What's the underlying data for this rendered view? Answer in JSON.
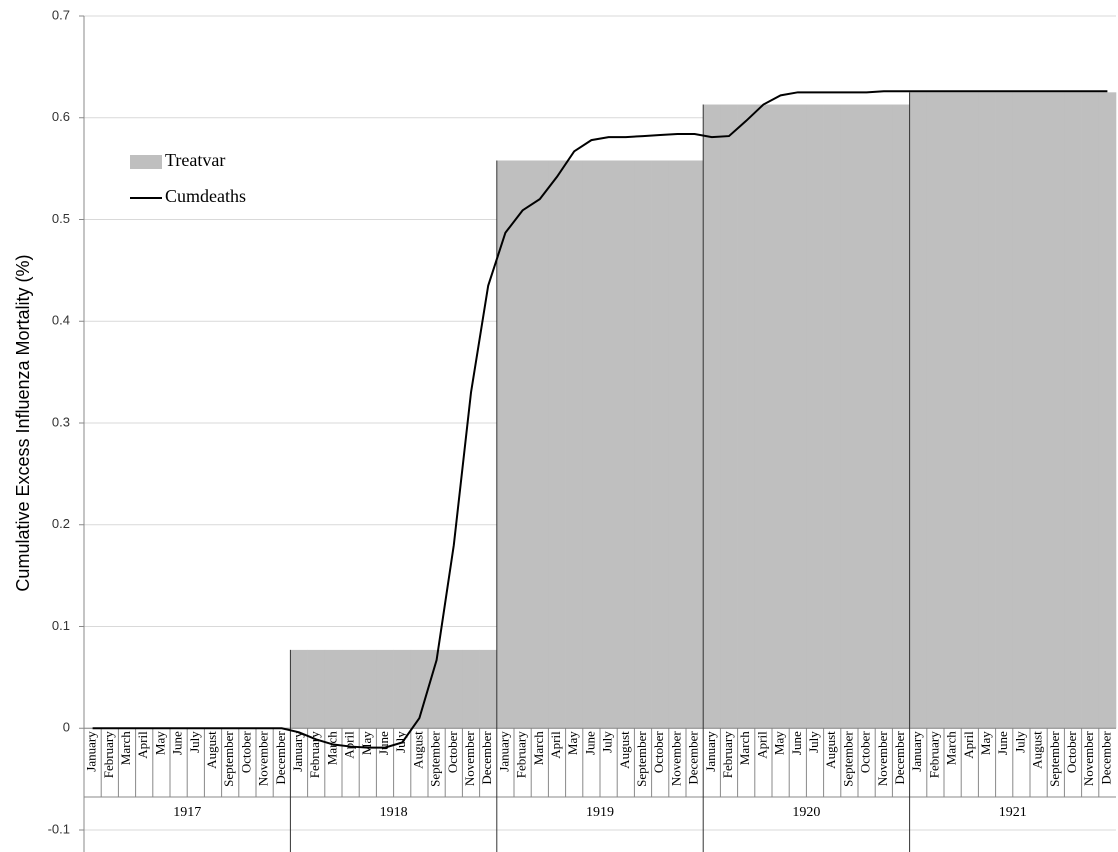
{
  "chart_data": {
    "type": "combo",
    "y_label": "Cumulative Excess Influenza Mortality (%)",
    "categories": [
      "January",
      "February",
      "March",
      "April",
      "May",
      "June",
      "July",
      "August",
      "September",
      "October",
      "November",
      "December",
      "January",
      "February",
      "March",
      "April",
      "May",
      "June",
      "July",
      "August",
      "September",
      "October",
      "November",
      "December",
      "January",
      "February",
      "March",
      "April",
      "May",
      "June",
      "July",
      "August",
      "September",
      "October",
      "November",
      "December",
      "January",
      "February",
      "March",
      "April",
      "May",
      "June",
      "July",
      "August",
      "September",
      "October",
      "November",
      "December",
      "January",
      "February",
      "March",
      "April",
      "May",
      "June",
      "July",
      "August",
      "September",
      "October",
      "November",
      "December"
    ],
    "category_groups": [
      "1917",
      "1918",
      "1919",
      "1920",
      "1921"
    ],
    "series": [
      {
        "name": "Treatvar",
        "type": "bar",
        "color": "#bfbfbf",
        "values": [
          0,
          0,
          0,
          0,
          0,
          0,
          0,
          0,
          0,
          0,
          0,
          0,
          0.077,
          0.077,
          0.077,
          0.077,
          0.077,
          0.077,
          0.077,
          0.077,
          0.077,
          0.077,
          0.077,
          0.077,
          0.558,
          0.558,
          0.558,
          0.558,
          0.558,
          0.558,
          0.558,
          0.558,
          0.558,
          0.558,
          0.558,
          0.558,
          0.613,
          0.613,
          0.613,
          0.613,
          0.613,
          0.613,
          0.613,
          0.613,
          0.613,
          0.613,
          0.613,
          0.613,
          0.625,
          0.625,
          0.625,
          0.625,
          0.625,
          0.625,
          0.625,
          0.625,
          0.625,
          0.625,
          0.625,
          0.625
        ]
      },
      {
        "name": "Cumdeaths",
        "type": "line",
        "color": "#000000",
        "values": [
          0,
          0,
          0,
          0,
          0,
          0,
          0,
          0,
          0,
          0,
          0,
          0,
          -0.004,
          -0.011,
          -0.016,
          -0.018,
          -0.019,
          -0.019,
          -0.014,
          0.01,
          0.067,
          0.18,
          0.33,
          0.435,
          0.487,
          0.509,
          0.52,
          0.542,
          0.567,
          0.578,
          0.581,
          0.581,
          0.582,
          0.583,
          0.584,
          0.584,
          0.581,
          0.582,
          0.597,
          0.613,
          0.622,
          0.625,
          0.625,
          0.625,
          0.625,
          0.625,
          0.626,
          0.626,
          0.626,
          0.626,
          0.626,
          0.626,
          0.626,
          0.626,
          0.626,
          0.626,
          0.626,
          0.626,
          0.626,
          0.626
        ]
      }
    ],
    "ylim": [
      -0.1,
      0.7
    ],
    "yticks": [
      -0.1,
      0,
      0.1,
      0.2,
      0.3,
      0.4,
      0.5,
      0.6,
      0.7
    ],
    "grid": true,
    "legend": "upper left"
  }
}
